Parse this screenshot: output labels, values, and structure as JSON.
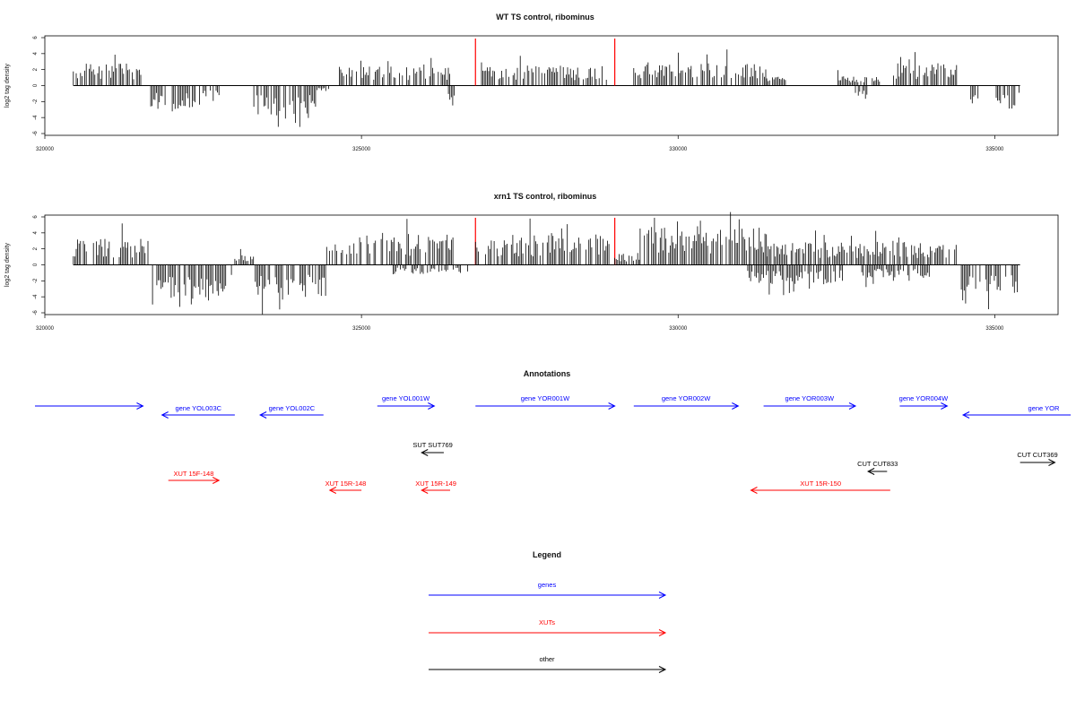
{
  "chart_data": [
    {
      "type": "bar",
      "title": "WT TS control, ribominus",
      "ylabel": "log2 tag density",
      "xlim": [
        320000,
        336000
      ],
      "ylim": [
        -6,
        6
      ],
      "yticks": [
        -6,
        -4,
        -2,
        0,
        2,
        4,
        6
      ],
      "xticks": [
        320000,
        325000,
        330000,
        335000
      ],
      "highlight_x": [
        326800,
        329000
      ],
      "highlight_color": "#ff0000",
      "segments": [
        {
          "x": [
            320450,
            321550
          ],
          "y": 2.2
        },
        {
          "x": [
            321650,
            322450
          ],
          "y": -2.6
        },
        {
          "x": [
            322500,
            322750
          ],
          "y": -1.2
        },
        {
          "x": [
            323300,
            324300
          ],
          "y": -3.4
        },
        {
          "x": [
            324300,
            324500
          ],
          "y": -0.6
        },
        {
          "x": [
            324650,
            326400
          ],
          "y": 1.9
        },
        {
          "x": [
            326350,
            326500
          ],
          "y": -2.8
        },
        {
          "x": [
            326850,
            328950
          ],
          "y": 2.0
        },
        {
          "x": [
            329300,
            331400
          ],
          "y": 2.4
        },
        {
          "x": [
            331400,
            331700
          ],
          "y": 0.9
        },
        {
          "x": [
            332500,
            333200
          ],
          "y": 1.1
        },
        {
          "x": [
            332800,
            333000
          ],
          "y": -1.6
        },
        {
          "x": [
            333400,
            334400
          ],
          "y": 2.3
        },
        {
          "x": [
            334600,
            334750
          ],
          "y": -2.0
        },
        {
          "x": [
            335000,
            335400
          ],
          "y": -2.3
        }
      ]
    },
    {
      "type": "bar",
      "title": "xrn1 TS control, ribominus",
      "ylabel": "log2 tag density",
      "xlim": [
        320000,
        336000
      ],
      "ylim": [
        -6,
        6
      ],
      "yticks": [
        -6,
        -4,
        -2,
        0,
        2,
        4,
        6
      ],
      "xticks": [
        320000,
        325000,
        330000,
        335000
      ],
      "highlight_x": [
        326800,
        329000
      ],
      "highlight_color": "#ff0000",
      "segments": [
        {
          "x": [
            320450,
            321650
          ],
          "y": 2.6
        },
        {
          "x": [
            321700,
            322950
          ],
          "y": -3.4
        },
        {
          "x": [
            323000,
            323300
          ],
          "y": 1.0
        },
        {
          "x": [
            323300,
            324450
          ],
          "y": -3.6
        },
        {
          "x": [
            324450,
            326450
          ],
          "y": 3.2
        },
        {
          "x": [
            325500,
            326700
          ],
          "y": -1.0
        },
        {
          "x": [
            326800,
            328950
          ],
          "y": 3.0
        },
        {
          "x": [
            329000,
            329400
          ],
          "y": 1.2
        },
        {
          "x": [
            329400,
            331400
          ],
          "y": 4.0
        },
        {
          "x": [
            331100,
            332600
          ],
          "y": -2.0
        },
        {
          "x": [
            331400,
            332600
          ],
          "y": 2.3
        },
        {
          "x": [
            332600,
            334400
          ],
          "y": 2.4
        },
        {
          "x": [
            332900,
            334000
          ],
          "y": -1.4
        },
        {
          "x": [
            334450,
            335400
          ],
          "y": -2.8
        }
      ]
    }
  ],
  "annotations": {
    "title": "Annotations",
    "colors": {
      "gene": "#0000ff",
      "xut": "#ff0000",
      "other": "#000000"
    },
    "items": [
      {
        "label": "",
        "kind": "gene",
        "dir": "right",
        "x": [
          320000,
          321550
        ],
        "row": 0
      },
      {
        "label": "gene YOL003C",
        "kind": "gene",
        "dir": "left",
        "x": [
          321850,
          323000
        ],
        "row": 1
      },
      {
        "label": "gene YOL002C",
        "kind": "gene",
        "dir": "left",
        "x": [
          323400,
          324400
        ],
        "row": 1
      },
      {
        "label": "gene YOL001W",
        "kind": "gene",
        "dir": "right",
        "x": [
          325250,
          326150
        ],
        "row": 0
      },
      {
        "label": "gene YOR001W",
        "kind": "gene",
        "dir": "right",
        "x": [
          326800,
          329000
        ],
        "row": 0
      },
      {
        "label": "gene YOR002W",
        "kind": "gene",
        "dir": "right",
        "x": [
          329300,
          330950
        ],
        "row": 0
      },
      {
        "label": "gene YOR003W",
        "kind": "gene",
        "dir": "right",
        "x": [
          331350,
          332800
        ],
        "row": 0
      },
      {
        "label": "gene YOR004W",
        "kind": "gene",
        "dir": "right",
        "x": [
          333500,
          334250
        ],
        "row": 0
      },
      {
        "label": "gene YOR",
        "kind": "gene",
        "dir": "left",
        "x": [
          334500,
          336200
        ],
        "row": 1
      },
      {
        "label": "SUT SUT769",
        "kind": "other",
        "dir": "left",
        "x": [
          325950,
          326300
        ],
        "row": 2
      },
      {
        "label": "CUT CUT833",
        "kind": "other",
        "dir": "left",
        "x": [
          333000,
          333300
        ],
        "row": 3
      },
      {
        "label": "CUT CUT369",
        "kind": "other",
        "dir": "right",
        "x": [
          335400,
          335950
        ],
        "row": 4
      },
      {
        "label": "XUT 15F-148",
        "kind": "xut",
        "dir": "right",
        "x": [
          321950,
          322750
        ],
        "row": 5
      },
      {
        "label": "XUT 15R-148",
        "kind": "xut",
        "dir": "left",
        "x": [
          324500,
          325000
        ],
        "row": 6
      },
      {
        "label": "XUT 15R-149",
        "kind": "xut",
        "dir": "left",
        "x": [
          325950,
          326400
        ],
        "row": 6
      },
      {
        "label": "XUT 15R-150",
        "kind": "xut",
        "dir": "left",
        "x": [
          331150,
          333350
        ],
        "row": 7
      }
    ]
  },
  "legend": {
    "title": "Legend",
    "entries": [
      {
        "label": "genes",
        "color": "#0000ff"
      },
      {
        "label": "XUTs",
        "color": "#ff0000"
      },
      {
        "label": "other",
        "color": "#000000"
      }
    ]
  }
}
